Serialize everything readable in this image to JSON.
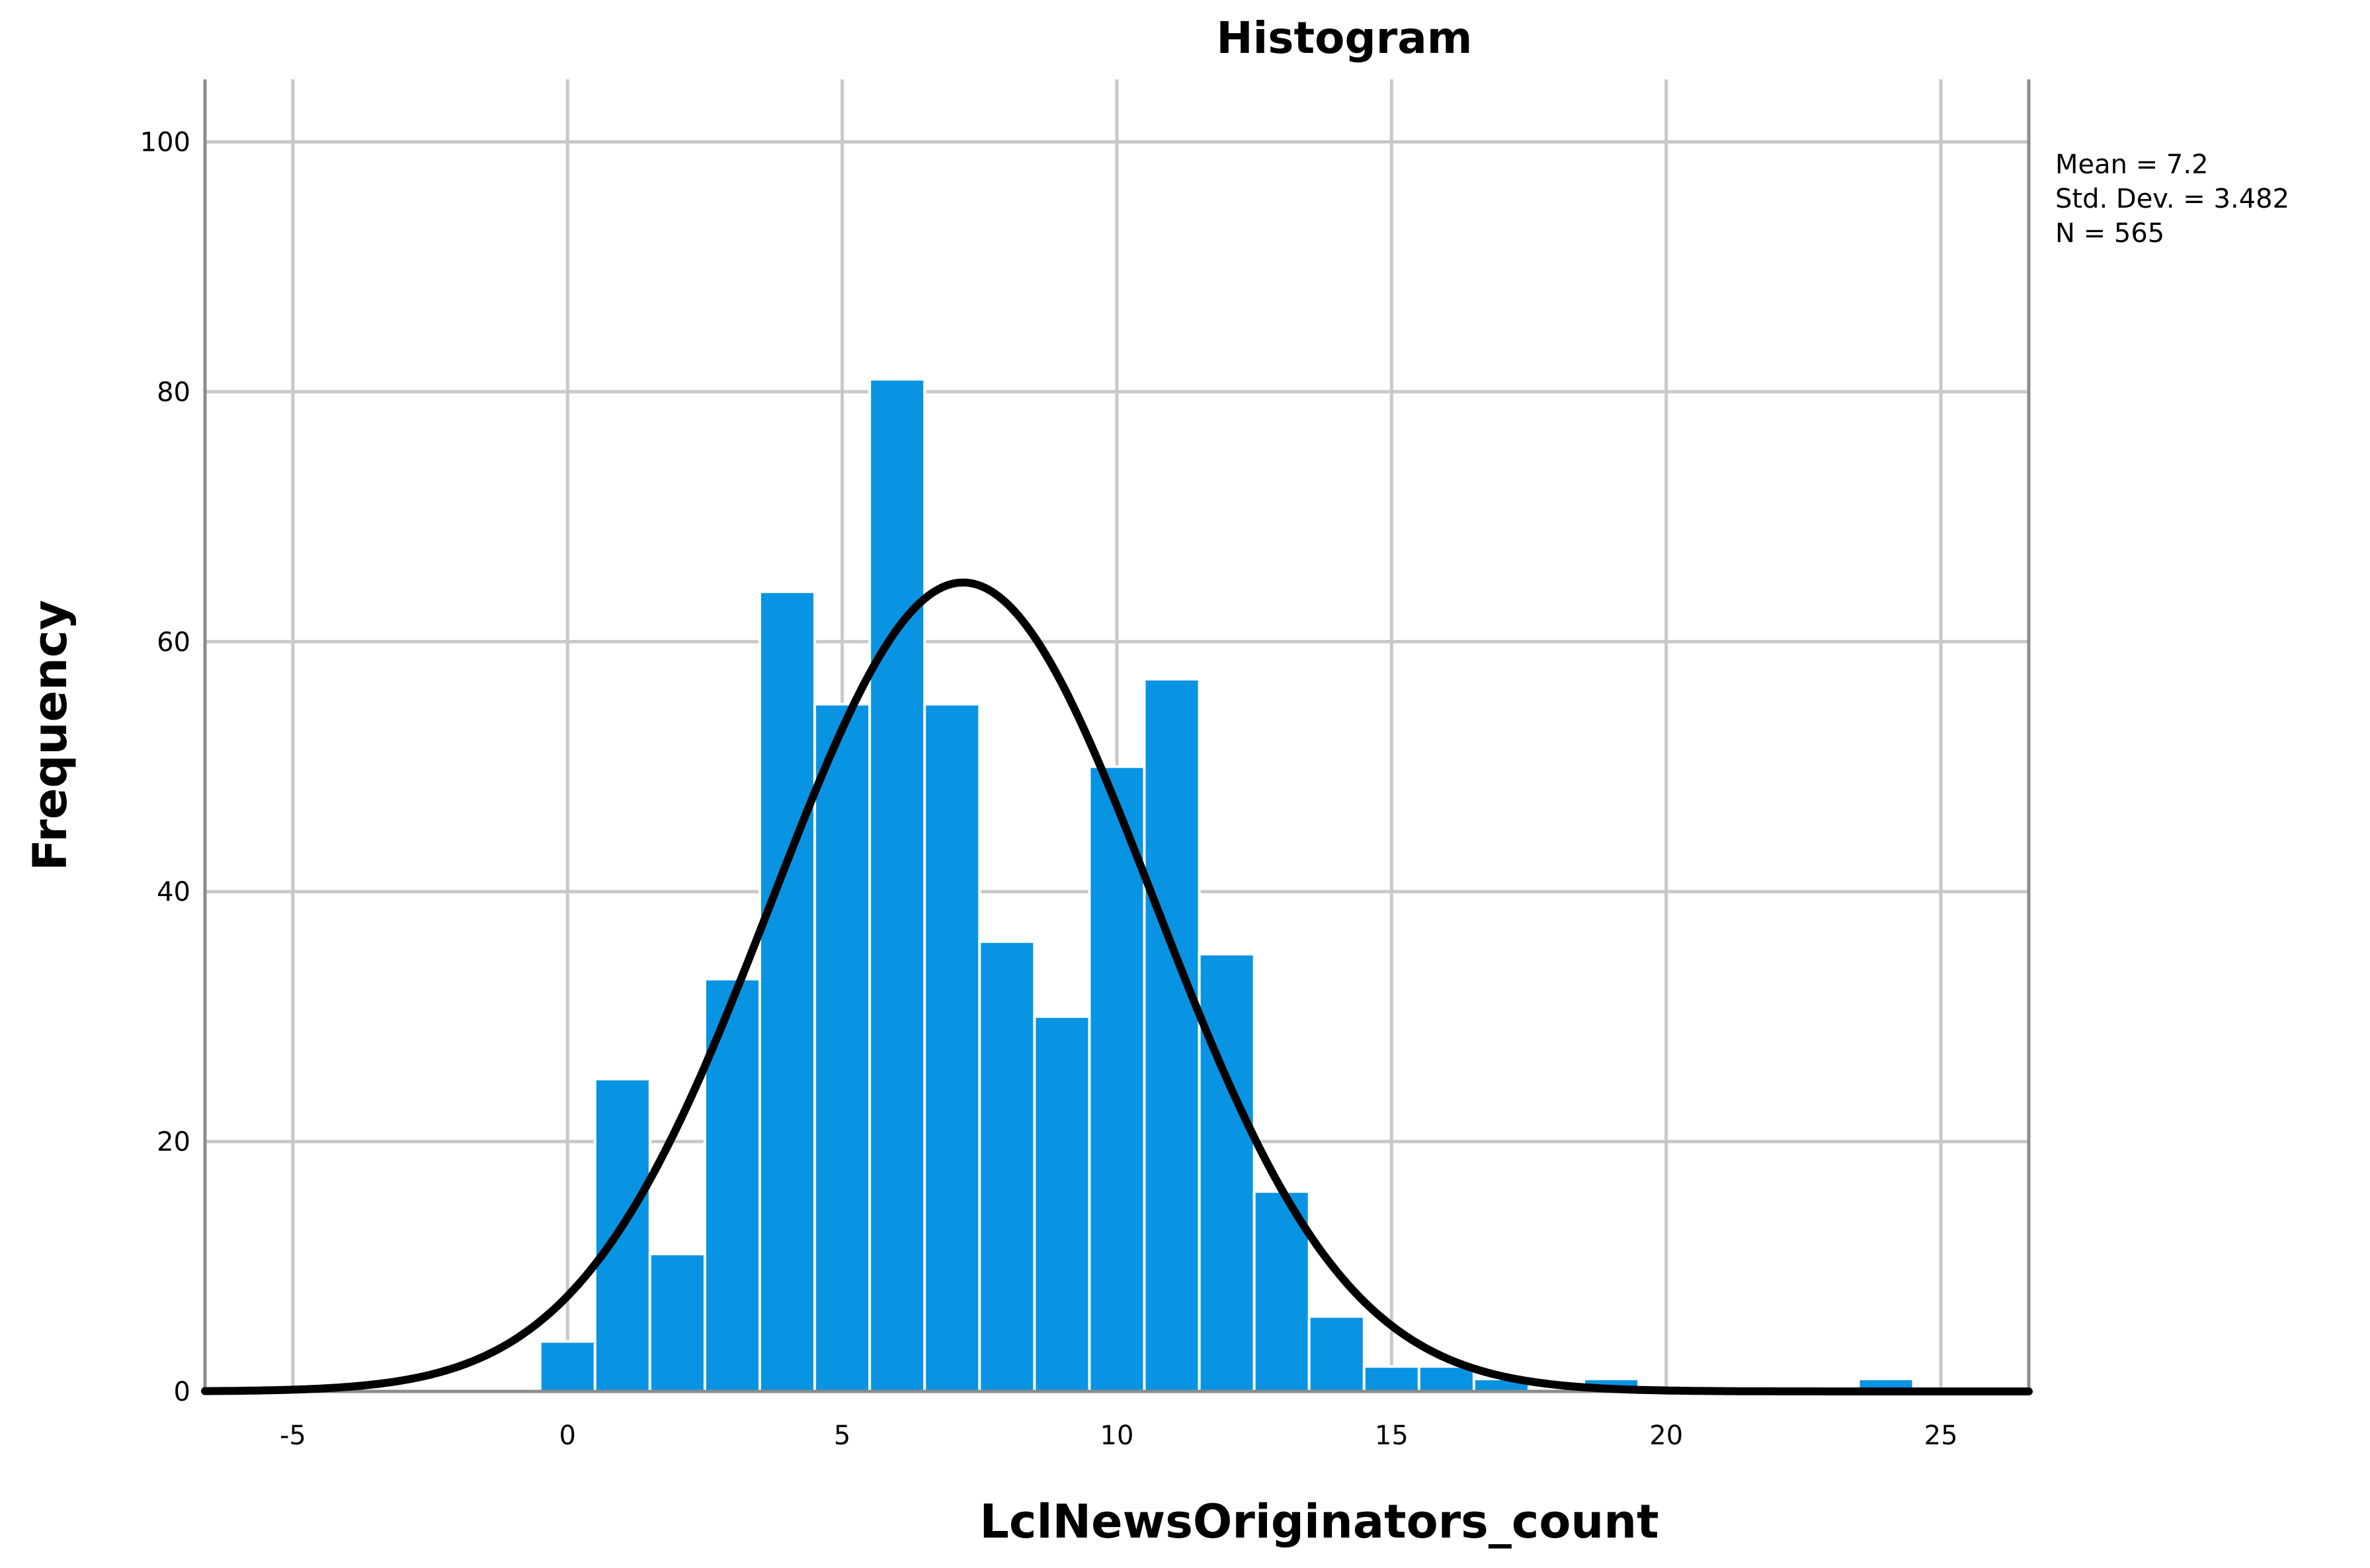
{
  "chart_data": {
    "type": "bar",
    "title": "Histogram",
    "xlabel": "LclNewsOriginators_count",
    "ylabel": "Frequency",
    "xlim": [
      -6.6,
      26.6
    ],
    "ylim": [
      0,
      105
    ],
    "x_ticks": [
      -5,
      0,
      5,
      10,
      15,
      20,
      25
    ],
    "y_ticks": [
      0,
      20,
      40,
      60,
      80,
      100
    ],
    "grid": true,
    "bin_width": 1,
    "bins": [
      {
        "center": 0,
        "value": 4
      },
      {
        "center": 1,
        "value": 25
      },
      {
        "center": 2,
        "value": 11
      },
      {
        "center": 3,
        "value": 33
      },
      {
        "center": 4,
        "value": 64
      },
      {
        "center": 5,
        "value": 55
      },
      {
        "center": 6,
        "value": 81
      },
      {
        "center": 7,
        "value": 55
      },
      {
        "center": 8,
        "value": 36
      },
      {
        "center": 9,
        "value": 30
      },
      {
        "center": 10,
        "value": 50
      },
      {
        "center": 11,
        "value": 57
      },
      {
        "center": 12,
        "value": 35
      },
      {
        "center": 13,
        "value": 16
      },
      {
        "center": 14,
        "value": 6
      },
      {
        "center": 15,
        "value": 2
      },
      {
        "center": 16,
        "value": 2
      },
      {
        "center": 17,
        "value": 1
      },
      {
        "center": 19,
        "value": 1
      },
      {
        "center": 24,
        "value": 1
      }
    ],
    "normal_curve": {
      "mean": 7.2,
      "std": 3.482,
      "n": 565
    },
    "stats": [
      "Mean = 7.2",
      "Std. Dev. = 3.482",
      "N = 565"
    ],
    "colors": {
      "bar": "#0894e2",
      "curve": "#000000",
      "grid": "#c8c8c8"
    }
  }
}
